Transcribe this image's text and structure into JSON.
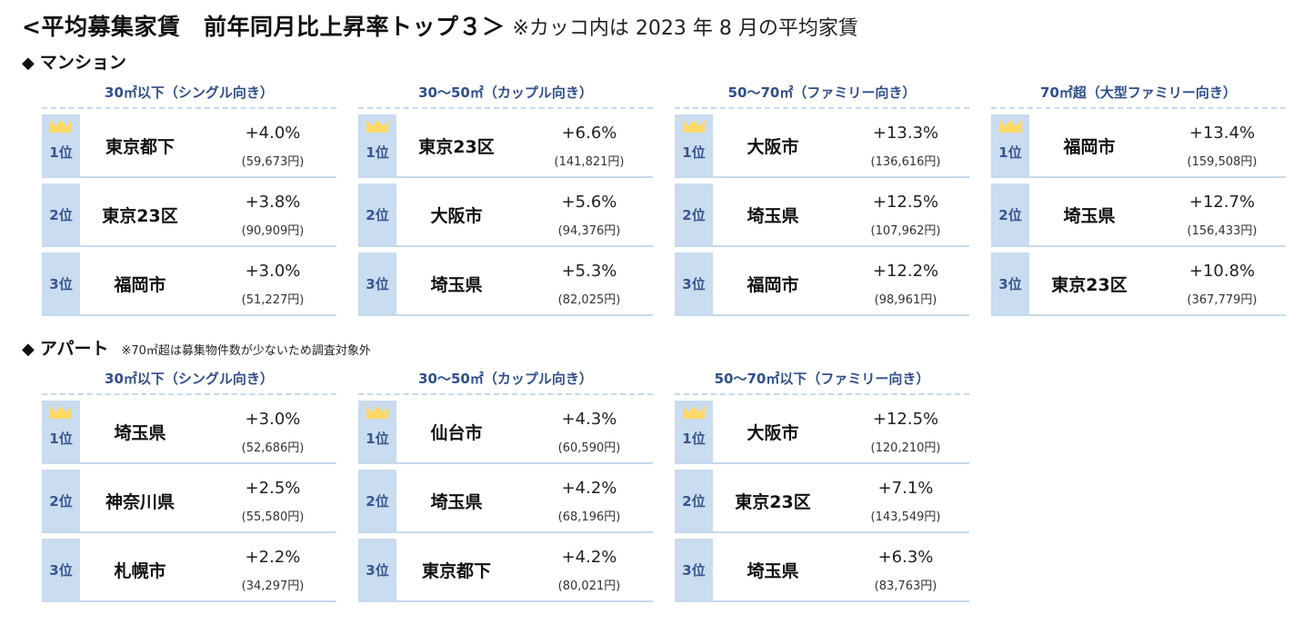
{
  "title": {
    "main": "<平均募集家賃　前年同月比上昇率トップ３＞",
    "note": "※カッコ内は 2023 年 8 月の平均家賃"
  },
  "colors": {
    "header_text": "#2f4f8a",
    "rank_bg": "#c9dcf0",
    "divider": "#c5d9ee",
    "crown": "#ffd966"
  },
  "mansion": {
    "diamond": "◆",
    "label": "マンション",
    "panels": [
      {
        "header": "30㎡以下（シングル向き）",
        "rows": [
          {
            "rank": "1位",
            "city": "東京都下",
            "pct": "+4.0%",
            "rent": "(59,673円)"
          },
          {
            "rank": "2位",
            "city": "東京23区",
            "pct": "+3.8%",
            "rent": "(90,909円)"
          },
          {
            "rank": "3位",
            "city": "福岡市",
            "pct": "+3.0%",
            "rent": "(51,227円)"
          }
        ]
      },
      {
        "header": "30〜50㎡（カップル向き）",
        "rows": [
          {
            "rank": "1位",
            "city": "東京23区",
            "pct": "+6.6%",
            "rent": "(141,821円)"
          },
          {
            "rank": "2位",
            "city": "大阪市",
            "pct": "+5.6%",
            "rent": "(94,376円)"
          },
          {
            "rank": "3位",
            "city": "埼玉県",
            "pct": "+5.3%",
            "rent": "(82,025円)"
          }
        ]
      },
      {
        "header": "50〜70㎡（ファミリー向き）",
        "rows": [
          {
            "rank": "1位",
            "city": "大阪市",
            "pct": "+13.3%",
            "rent": "(136,616円)"
          },
          {
            "rank": "2位",
            "city": "埼玉県",
            "pct": "+12.5%",
            "rent": "(107,962円)"
          },
          {
            "rank": "3位",
            "city": "福岡市",
            "pct": "+12.2%",
            "rent": "(98,961円)"
          }
        ]
      },
      {
        "header": "70㎡超（大型ファミリー向き）",
        "rows": [
          {
            "rank": "1位",
            "city": "福岡市",
            "pct": "+13.4%",
            "rent": "(159,508円)"
          },
          {
            "rank": "2位",
            "city": "埼玉県",
            "pct": "+12.7%",
            "rent": "(156,433円)"
          },
          {
            "rank": "3位",
            "city": "東京23区",
            "pct": "+10.8%",
            "rent": "(367,779円)"
          }
        ]
      }
    ]
  },
  "apart": {
    "diamond": "◆",
    "label": "アパート",
    "note": "※70㎡超は募集物件数が少ないため調査対象外",
    "panels": [
      {
        "header": "30㎡以下（シングル向き）",
        "rows": [
          {
            "rank": "1位",
            "city": "埼玉県",
            "pct": "+3.0%",
            "rent": "(52,686円)"
          },
          {
            "rank": "2位",
            "city": "神奈川県",
            "pct": "+2.5%",
            "rent": "(55,580円)"
          },
          {
            "rank": "3位",
            "city": "札幌市",
            "pct": "+2.2%",
            "rent": "(34,297円)"
          }
        ]
      },
      {
        "header": "30〜50㎡（カップル向き）",
        "rows": [
          {
            "rank": "1位",
            "city": "仙台市",
            "pct": "+4.3%",
            "rent": "(60,590円)"
          },
          {
            "rank": "2位",
            "city": "埼玉県",
            "pct": "+4.2%",
            "rent": "(68,196円)"
          },
          {
            "rank": "3位",
            "city": "東京都下",
            "pct": "+4.2%",
            "rent": "(80,021円)"
          }
        ]
      },
      {
        "header": "50〜70㎡以下（ファミリー向き）",
        "rows": [
          {
            "rank": "1位",
            "city": "大阪市",
            "pct": "+12.5%",
            "rent": "(120,210円)"
          },
          {
            "rank": "2位",
            "city": "東京23区",
            "pct": "+7.1%",
            "rent": "(143,549円)"
          },
          {
            "rank": "3位",
            "city": "埼玉県",
            "pct": "+6.3%",
            "rent": "(83,763円)"
          }
        ]
      }
    ]
  }
}
